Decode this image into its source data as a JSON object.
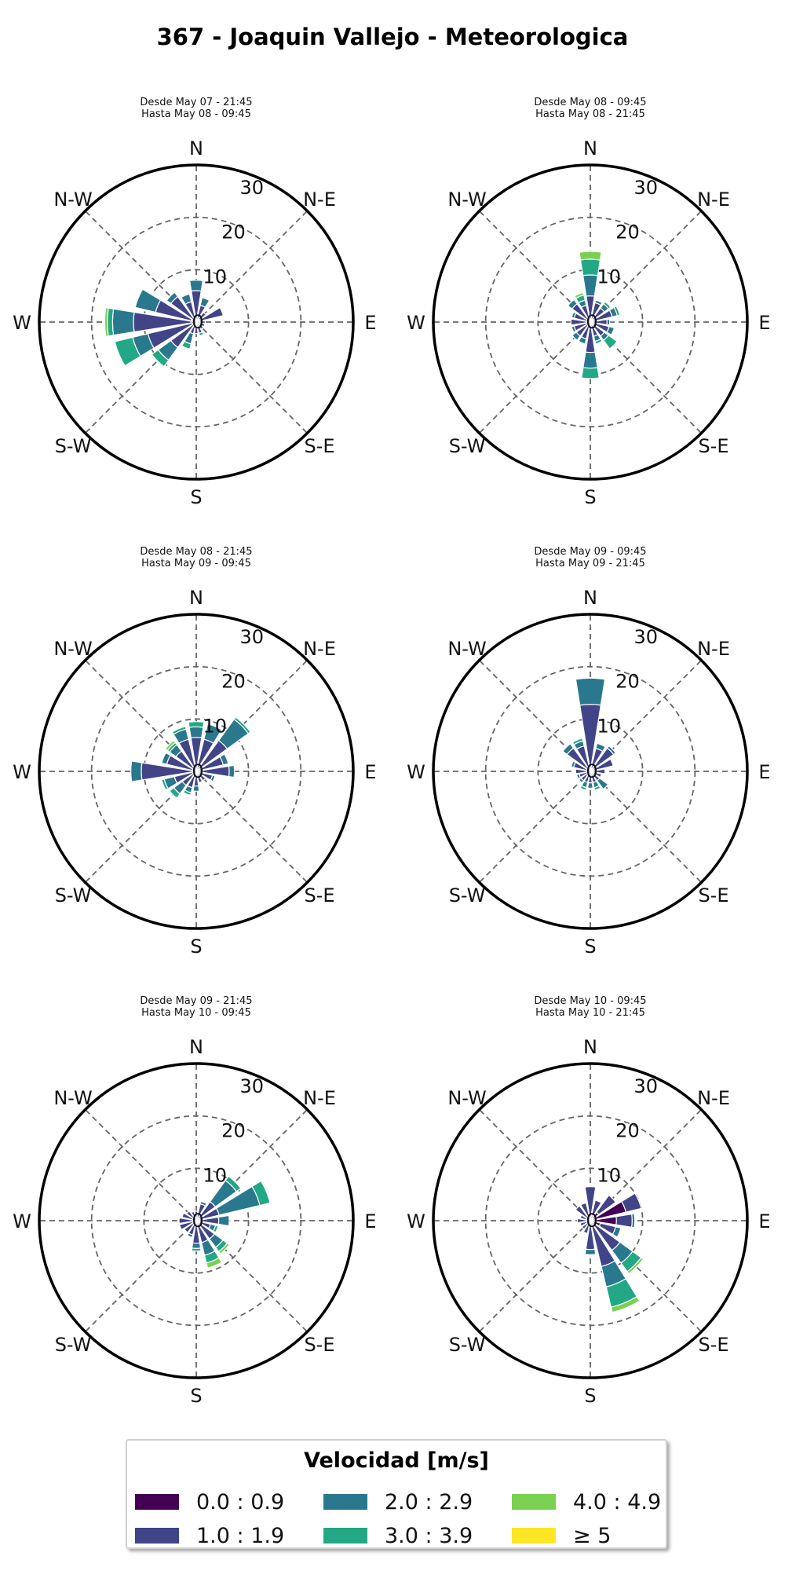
{
  "title": "367 - Joaquin Vallejo - Meteorologica",
  "direction_labels": [
    "N",
    "N-E",
    "E",
    "S-E",
    "S",
    "S-W",
    "W",
    "N-W"
  ],
  "radial_ticks": [
    "0",
    "10",
    "20",
    "30"
  ],
  "colors": {
    "speed_bins": [
      "#440154",
      "#414487",
      "#2a788e",
      "#22a884",
      "#7ad151",
      "#fde725"
    ]
  },
  "legend": {
    "title": "Velocidad [m/s]",
    "items": [
      {
        "label": "0.0 : 0.9",
        "color": "#440154"
      },
      {
        "label": "1.0 : 1.9",
        "color": "#414487"
      },
      {
        "label": "2.0 : 2.9",
        "color": "#2a788e"
      },
      {
        "label": "3.0 : 3.9",
        "color": "#22a884"
      },
      {
        "label": "4.0 : 4.9",
        "color": "#7ad151"
      },
      {
        "label": "≥  5",
        "color": "#fde725"
      }
    ]
  },
  "chart_data": [
    {
      "type": "wind-rose",
      "subtitle_from": "Desde May 07 - 21:45",
      "subtitle_to": "Hasta May 08 - 09:45",
      "rmax": 30,
      "rticks": [
        0,
        10,
        20,
        30
      ],
      "bins": [
        "0.0 : 0.9",
        "1.0 : 1.9",
        "2.0 : 2.9",
        "3.0 : 3.9",
        "4.0 : 4.9",
        "≥ 5"
      ],
      "directions_deg": [
        0,
        22.5,
        45,
        67.5,
        90,
        112.5,
        135,
        157.5,
        180,
        202.5,
        225,
        247.5,
        270,
        292.5,
        315,
        337.5
      ],
      "counts": [
        [
          0.5,
          5.5,
          2,
          0,
          0,
          0
        ],
        [
          0.3,
          3,
          1.5,
          0,
          0,
          0
        ],
        [
          0.3,
          2,
          0,
          0,
          0,
          0
        ],
        [
          0.3,
          5,
          0,
          0,
          0,
          0
        ],
        [
          0.2,
          1.5,
          0,
          0,
          0,
          0
        ],
        [
          0.2,
          1.5,
          0,
          0,
          0,
          0
        ],
        [
          0.2,
          1.5,
          0,
          0,
          0,
          0
        ],
        [
          0.2,
          2,
          0,
          0.5,
          0,
          0
        ],
        [
          0.2,
          2,
          0,
          0,
          0,
          0
        ],
        [
          0.3,
          2,
          2,
          1,
          0,
          0
        ],
        [
          0.5,
          5.5,
          3,
          1.5,
          0,
          0
        ],
        [
          0.5,
          9,
          3,
          3.5,
          0,
          0
        ],
        [
          1,
          11,
          4,
          1,
          0.5,
          0
        ],
        [
          1,
          7,
          4,
          0,
          0,
          0
        ],
        [
          0.5,
          5.5,
          1,
          0,
          0,
          0
        ],
        [
          0.5,
          3.5,
          1.5,
          0,
          0,
          0
        ]
      ]
    },
    {
      "type": "wind-rose",
      "subtitle_from": "Desde May 08 - 09:45",
      "subtitle_to": "Hasta May 08 - 21:45",
      "rmax": 30,
      "rticks": [
        0,
        10,
        20,
        30
      ],
      "bins": [
        "0.0 : 0.9",
        "1.0 : 1.9",
        "2.0 : 2.9",
        "3.0 : 3.9",
        "4.0 : 4.9",
        "≥ 5"
      ],
      "directions_deg": [
        0,
        22.5,
        45,
        67.5,
        90,
        112.5,
        135,
        157.5,
        180,
        202.5,
        225,
        247.5,
        270,
        292.5,
        315,
        337.5
      ],
      "counts": [
        [
          0.5,
          4.5,
          4,
          3,
          1.5,
          0
        ],
        [
          0.3,
          3.5,
          0.5,
          0,
          0,
          0
        ],
        [
          0.3,
          3,
          1,
          0.5,
          0,
          0
        ],
        [
          0.3,
          4,
          1,
          0.5,
          0,
          0
        ],
        [
          0.2,
          3,
          0.5,
          0,
          0,
          0
        ],
        [
          0.2,
          3.5,
          1,
          0,
          0,
          0
        ],
        [
          0.3,
          3,
          1,
          2,
          0,
          0
        ],
        [
          0.3,
          2.5,
          1,
          0.5,
          0,
          0
        ],
        [
          0.3,
          5.5,
          3,
          2,
          0,
          0
        ],
        [
          0.3,
          3,
          1,
          0,
          0,
          0
        ],
        [
          0.3,
          3,
          1,
          0,
          0,
          0
        ],
        [
          0.2,
          3,
          0.5,
          0,
          0,
          0
        ],
        [
          0.2,
          3.5,
          0,
          0,
          0,
          0
        ],
        [
          0.2,
          3,
          0.5,
          0,
          0,
          0
        ],
        [
          0.3,
          4,
          1,
          0,
          0,
          0
        ],
        [
          0.3,
          3,
          1,
          1,
          0.5,
          0
        ]
      ]
    },
    {
      "type": "wind-rose",
      "subtitle_from": "Desde May 08 - 21:45",
      "subtitle_to": "Hasta May 09 - 09:45",
      "rmax": 30,
      "rticks": [
        0,
        10,
        20,
        30
      ],
      "bins": [
        "0.0 : 0.9",
        "1.0 : 1.9",
        "2.0 : 2.9",
        "3.0 : 3.9",
        "4.0 : 4.9",
        "≥ 5"
      ],
      "directions_deg": [
        0,
        22.5,
        45,
        67.5,
        90,
        112.5,
        135,
        157.5,
        180,
        202.5,
        225,
        247.5,
        270,
        292.5,
        315,
        337.5
      ],
      "counts": [
        [
          0.5,
          6,
          2,
          1,
          0,
          0
        ],
        [
          0.3,
          6,
          3,
          0,
          0,
          0
        ],
        [
          0.3,
          7,
          5,
          0.5,
          0,
          0
        ],
        [
          0.3,
          5,
          1,
          0,
          0,
          0
        ],
        [
          0.3,
          6,
          1,
          0,
          0,
          0
        ],
        [
          0.2,
          3,
          0.5,
          0,
          0,
          0
        ],
        [
          0.2,
          2,
          0,
          0,
          0,
          0
        ],
        [
          0.2,
          2,
          0,
          0,
          0,
          0
        ],
        [
          0.3,
          2.5,
          1,
          0,
          0,
          0
        ],
        [
          0.2,
          3,
          1,
          0.5,
          0,
          0
        ],
        [
          0.3,
          3,
          2,
          1,
          0,
          0
        ],
        [
          0.3,
          4,
          2,
          0.5,
          0,
          0
        ],
        [
          0.5,
          10,
          2,
          0,
          0,
          0
        ],
        [
          0.3,
          5.5,
          1,
          0,
          0,
          0
        ],
        [
          0.3,
          4.5,
          1.5,
          0.5,
          0.5,
          0
        ],
        [
          0.3,
          6,
          2,
          0.5,
          0,
          0
        ]
      ]
    },
    {
      "type": "wind-rose",
      "subtitle_from": "Desde May 09 - 09:45",
      "subtitle_to": "Hasta May 09 - 21:45",
      "rmax": 30,
      "rticks": [
        0,
        10,
        20,
        30
      ],
      "bins": [
        "0.0 : 0.9",
        "1.0 : 1.9",
        "2.0 : 2.9",
        "3.0 : 3.9",
        "4.0 : 4.9",
        "≥ 5"
      ],
      "directions_deg": [
        0,
        22.5,
        45,
        67.5,
        90,
        112.5,
        135,
        157.5,
        180,
        202.5,
        225,
        247.5,
        270,
        292.5,
        315,
        337.5
      ],
      "counts": [
        [
          0.8,
          12,
          5,
          0,
          0,
          0
        ],
        [
          0.5,
          4,
          1,
          0,
          0,
          0
        ],
        [
          0.5,
          5,
          0.5,
          0,
          0,
          0
        ],
        [
          0.5,
          4,
          0,
          0,
          0,
          0
        ],
        [
          0.3,
          2.5,
          0,
          0,
          0,
          0
        ],
        [
          0.2,
          2,
          0,
          0,
          0,
          0
        ],
        [
          0.2,
          2,
          2,
          0,
          0,
          0
        ],
        [
          0.2,
          2,
          1,
          0.5,
          0,
          0
        ],
        [
          0.2,
          2,
          1,
          0,
          0,
          0
        ],
        [
          0.2,
          2,
          1,
          0.5,
          0,
          0
        ],
        [
          0.2,
          2,
          0.5,
          0,
          0,
          0
        ],
        [
          0.2,
          2,
          0.5,
          0,
          0,
          0
        ],
        [
          0.3,
          2.5,
          0,
          0,
          0,
          0
        ],
        [
          0.3,
          3,
          0.5,
          0,
          0,
          0
        ],
        [
          0.5,
          5,
          1,
          0,
          0,
          0
        ],
        [
          0.5,
          4.5,
          1,
          0.5,
          0,
          0
        ]
      ]
    },
    {
      "type": "wind-rose",
      "subtitle_from": "Desde May 09 - 21:45",
      "subtitle_to": "Hasta May 10 - 09:45",
      "rmax": 30,
      "rticks": [
        0,
        10,
        20,
        30
      ],
      "bins": [
        "0.0 : 0.9",
        "1.0 : 1.9",
        "2.0 : 2.9",
        "3.0 : 3.9",
        "4.0 : 4.9",
        "≥ 5"
      ],
      "directions_deg": [
        0,
        22.5,
        45,
        67.5,
        90,
        112.5,
        135,
        157.5,
        180,
        202.5,
        225,
        247.5,
        270,
        292.5,
        315,
        337.5
      ],
      "counts": [
        [
          0.3,
          1.5,
          0,
          0,
          0,
          0
        ],
        [
          0.3,
          3,
          0.5,
          0,
          0,
          0
        ],
        [
          0.5,
          4,
          5,
          1,
          0,
          0
        ],
        [
          0.5,
          4,
          8,
          2,
          0,
          0
        ],
        [
          0.3,
          4,
          2,
          0,
          0,
          0
        ],
        [
          0.3,
          2.5,
          1,
          0.5,
          0,
          0
        ],
        [
          0.3,
          4,
          2,
          1,
          0.5,
          0
        ],
        [
          0.3,
          4,
          2.5,
          1.5,
          1,
          0
        ],
        [
          0.3,
          4,
          1,
          0.5,
          0,
          0
        ],
        [
          0.3,
          2.5,
          0.5,
          0,
          0,
          0
        ],
        [
          0.3,
          2.5,
          0,
          0,
          0,
          0
        ],
        [
          0.3,
          3,
          0,
          0,
          0,
          0
        ],
        [
          0.3,
          3,
          0,
          0,
          0,
          0
        ],
        [
          0.3,
          2.5,
          0,
          0,
          0,
          0
        ],
        [
          0.3,
          2,
          0,
          0,
          0,
          0
        ],
        [
          0.3,
          1.5,
          0,
          0,
          0,
          0
        ]
      ]
    },
    {
      "type": "wind-rose",
      "subtitle_from": "Desde May 10 - 09:45",
      "subtitle_to": "Hasta May 10 - 21:45",
      "rmax": 30,
      "rticks": [
        0,
        10,
        20,
        30
      ],
      "bins": [
        "0.0 : 0.9",
        "1.0 : 1.9",
        "2.0 : 2.9",
        "3.0 : 3.9",
        "4.0 : 4.9",
        "≥ 5"
      ],
      "directions_deg": [
        0,
        22.5,
        45,
        67.5,
        90,
        112.5,
        135,
        157.5,
        180,
        202.5,
        225,
        247.5,
        270,
        292.5,
        315,
        337.5
      ],
      "counts": [
        [
          0.5,
          6,
          0,
          0,
          0,
          0
        ],
        [
          1,
          3,
          0,
          0,
          0,
          0
        ],
        [
          2,
          4,
          0,
          0,
          0,
          0
        ],
        [
          7,
          3,
          0,
          0,
          0,
          0
        ],
        [
          5,
          3,
          0.5,
          0,
          0,
          0
        ],
        [
          2,
          3,
          1,
          0,
          0,
          0
        ],
        [
          1,
          6,
          3,
          2,
          0.5,
          0
        ],
        [
          1,
          8,
          4,
          4,
          1,
          0
        ],
        [
          0.5,
          5,
          1,
          0,
          0,
          0
        ],
        [
          0.5,
          2,
          0,
          0,
          0,
          0
        ],
        [
          0.5,
          1.5,
          0,
          0,
          0,
          0
        ],
        [
          0.5,
          1.5,
          0,
          0,
          0,
          0
        ],
        [
          0.5,
          2,
          0,
          0,
          0,
          0
        ],
        [
          0.5,
          1.5,
          0,
          0,
          0,
          0
        ],
        [
          0.5,
          3,
          0,
          0,
          0,
          0
        ],
        [
          0.5,
          3,
          0,
          0,
          0,
          0
        ]
      ]
    }
  ]
}
